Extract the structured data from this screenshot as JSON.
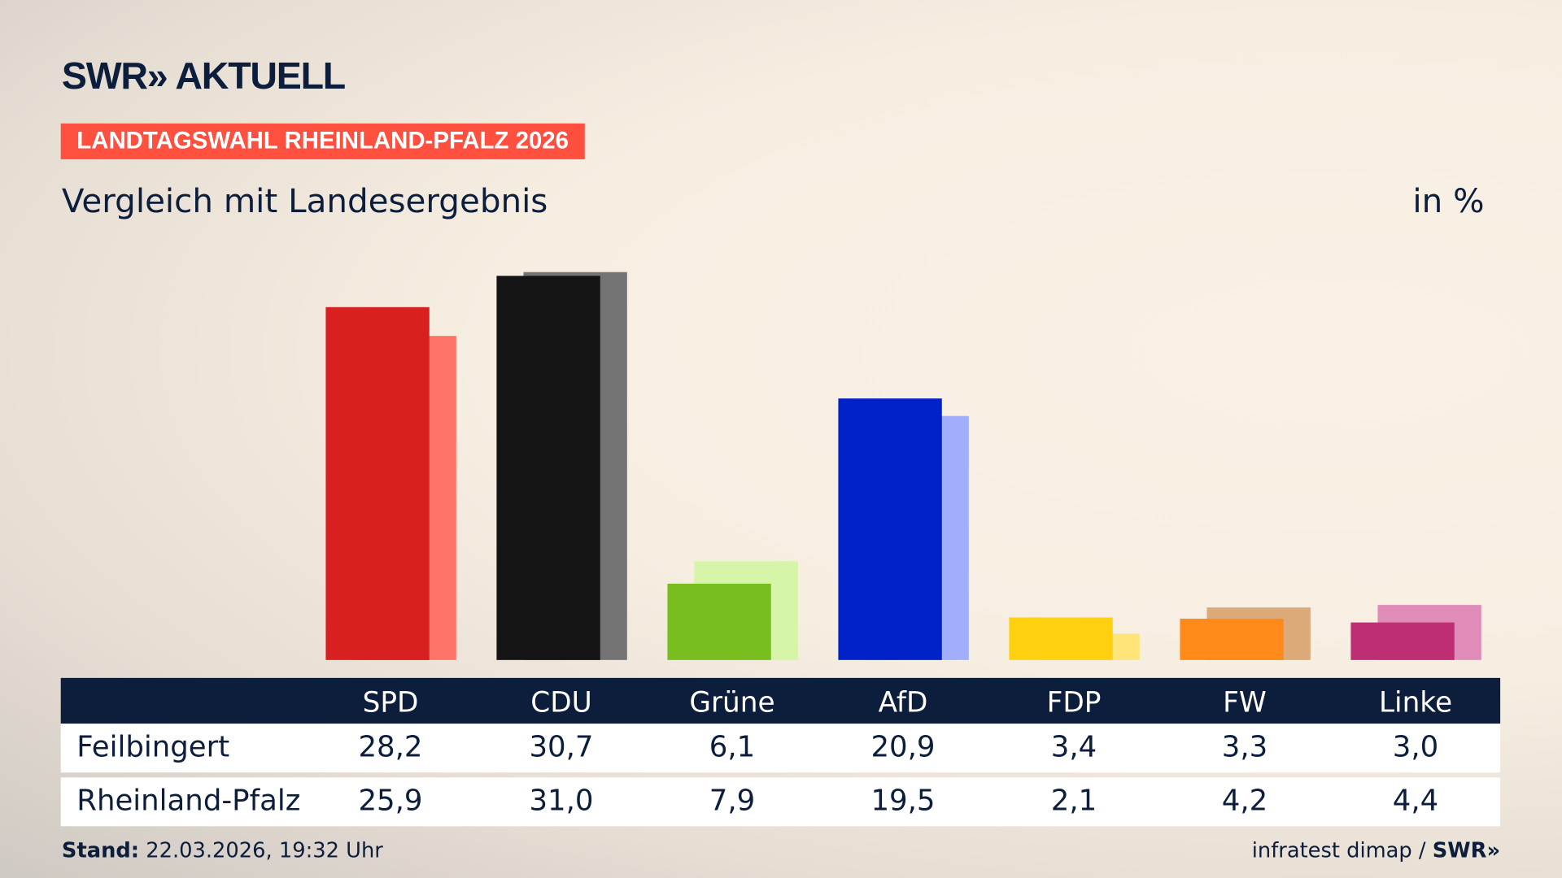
{
  "brand": {
    "logo": "SWR» AKTUELL",
    "footer_logo": "SWR»"
  },
  "badge": "LANDTAGSWAHL RHEINLAND-PFALZ 2026",
  "subtitle": "Vergleich mit Landesergebnis",
  "unit": "in %",
  "footer": {
    "stand_label": "Stand:",
    "stand_value": "22.03.2026, 19:32 Uhr",
    "source": "infratest dimap /"
  },
  "chart_data": {
    "type": "bar",
    "categories": [
      "SPD",
      "CDU",
      "Grüne",
      "AfD",
      "FDP",
      "FW",
      "Linke"
    ],
    "series": [
      {
        "name": "Feilbingert",
        "values": [
          28.2,
          30.7,
          6.1,
          20.9,
          3.4,
          3.3,
          3.0
        ],
        "labels": [
          "28,2",
          "30,7",
          "6,1",
          "20,9",
          "3,4",
          "3,3",
          "3,0"
        ],
        "colors": [
          "#d82020",
          "#141414",
          "#78be1e",
          "#0022c8",
          "#ffd010",
          "#ff8a1a",
          "#be2e74"
        ]
      },
      {
        "name": "Rheinland-Pfalz",
        "values": [
          25.9,
          31.0,
          7.9,
          19.5,
          2.1,
          4.2,
          4.4
        ],
        "labels": [
          "25,9",
          "31,0",
          "7,9",
          "19,5",
          "2,1",
          "4,2",
          "4,4"
        ],
        "colors": [
          "#ff7468",
          "#747474",
          "#d6f5a8",
          "#a0aefc",
          "#ffe47a",
          "#dcaa78",
          "#e08cb8"
        ]
      }
    ],
    "ylim": [
      0,
      31
    ]
  }
}
